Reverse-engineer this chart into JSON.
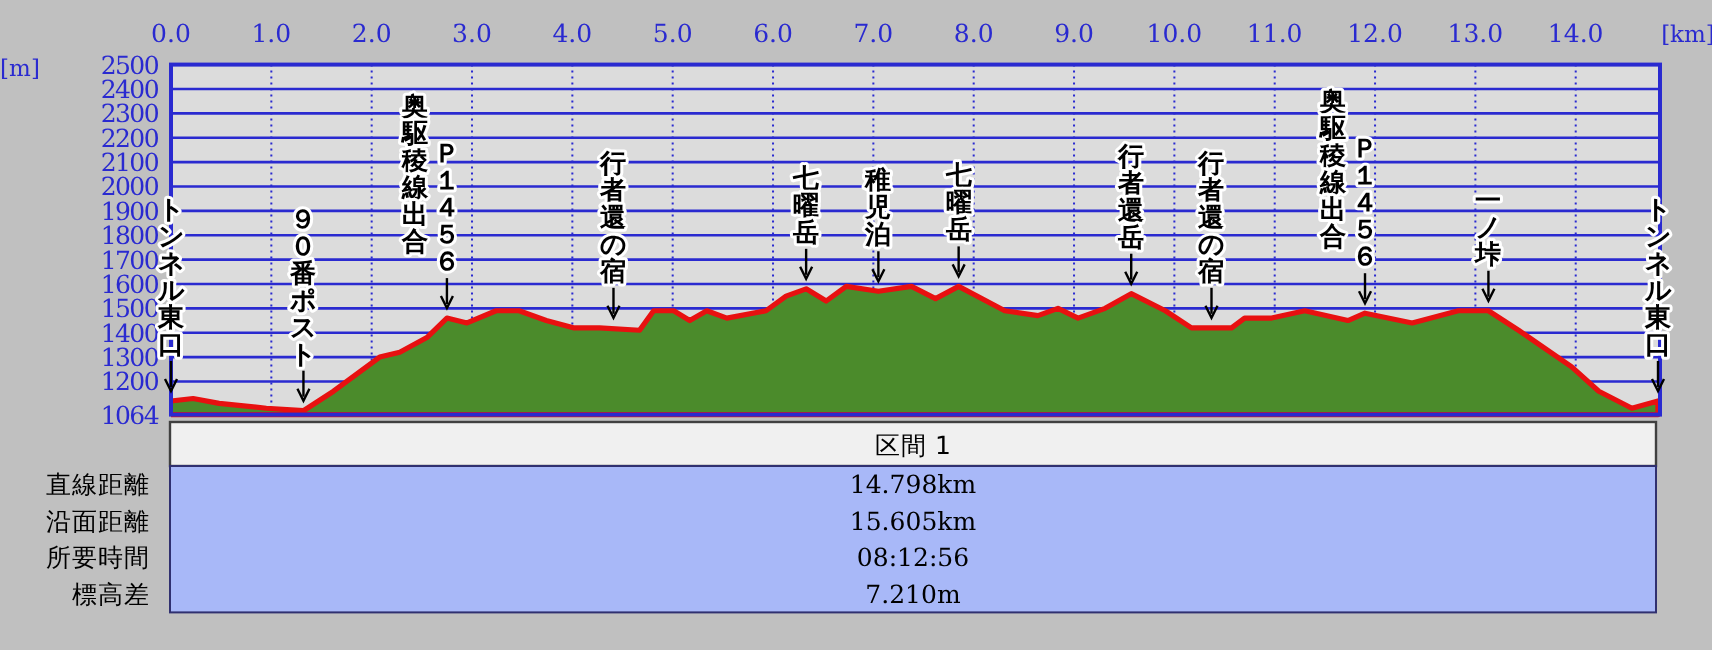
{
  "chart_data": [
    {
      "type": "area",
      "xlabel": "[km]",
      "ylabel": "[m]",
      "x": [
        0,
        0.22,
        0.48,
        0.95,
        1.32,
        1.62,
        2.08,
        2.28,
        2.55,
        2.75,
        2.95,
        3.24,
        3.47,
        3.74,
        4.01,
        4.27,
        4.67,
        4.81,
        5.01,
        5.17,
        5.34,
        5.54,
        5.93,
        6.13,
        6.33,
        6.53,
        6.73,
        7.05,
        7.38,
        7.62,
        7.85,
        8.31,
        8.64,
        8.84,
        9.04,
        9.31,
        9.57,
        9.91,
        10.17,
        10.57,
        10.7,
        10.97,
        11.3,
        11.73,
        11.9,
        12.37,
        12.83,
        13.13,
        13.43,
        13.96,
        14.23,
        14.56,
        14.82
      ],
      "series": [
        {
          "color": "#4b8b2b",
          "values": [
            1120,
            1130,
            1110,
            1090,
            1080,
            1160,
            1300,
            1320,
            1380,
            1460,
            1440,
            1490,
            1490,
            1450,
            1420,
            1420,
            1410,
            1490,
            1490,
            1450,
            1490,
            1460,
            1490,
            1550,
            1580,
            1530,
            1590,
            1570,
            1590,
            1540,
            1590,
            1490,
            1470,
            1500,
            1460,
            1500,
            1560,
            1490,
            1420,
            1420,
            1460,
            1460,
            1490,
            1450,
            1480,
            1440,
            1490,
            1490,
            1410,
            1260,
            1160,
            1090,
            1120
          ]
        }
      ],
      "xlim": [
        0,
        14.84
      ],
      "ylim": [
        1064,
        2500
      ],
      "xticks": [
        {
          "value": 0,
          "label": "0.0"
        },
        {
          "value": 1,
          "label": "1.0"
        },
        {
          "value": 2,
          "label": "2.0"
        },
        {
          "value": 3,
          "label": "3.0"
        },
        {
          "value": 4,
          "label": "4.0"
        },
        {
          "value": 5,
          "label": "5.0"
        },
        {
          "value": 6,
          "label": "6.0"
        },
        {
          "value": 7,
          "label": "7.0"
        },
        {
          "value": 8,
          "label": "8.0"
        },
        {
          "value": 9,
          "label": "9.0"
        },
        {
          "value": 10,
          "label": "10.0"
        },
        {
          "value": 11,
          "label": "11.0"
        },
        {
          "value": 12,
          "label": "12.0"
        },
        {
          "value": 13,
          "label": "13.0"
        },
        {
          "value": 14,
          "label": "14.0"
        }
      ],
      "yticks": [
        1064,
        1200,
        1300,
        1400,
        1500,
        1600,
        1700,
        1800,
        1900,
        2000,
        2100,
        2200,
        2300,
        2400,
        2500
      ],
      "grid": true,
      "annotations": [
        {
          "text": "トンネル東口",
          "x": 0,
          "y": 1120
        },
        {
          "text": "９０番ポスト",
          "x": 1.32,
          "y": 1080
        },
        {
          "text": "奥駆稜線出合",
          "x": 2.75,
          "y": 1460
        },
        {
          "text": "Ｐ１４５６",
          "x": 2.75,
          "y": 1460
        },
        {
          "text": "行者還の宿",
          "x": 4.41,
          "y": 1420
        },
        {
          "text": "七曜岳",
          "x": 6.33,
          "y": 1580
        },
        {
          "text": "稚児泊",
          "x": 7.05,
          "y": 1570
        },
        {
          "text": "七曜岳",
          "x": 7.85,
          "y": 1590
        },
        {
          "text": "行者還岳",
          "x": 9.57,
          "y": 1560
        },
        {
          "text": "行者還の宿",
          "x": 10.37,
          "y": 1420
        },
        {
          "text": "奥駆稜線出合",
          "x": 11.9,
          "y": 1480
        },
        {
          "text": "Ｐ１４５６",
          "x": 11.9,
          "y": 1480
        },
        {
          "text": "一ノ垰",
          "x": 13.13,
          "y": 1490
        },
        {
          "text": "トンネル東口",
          "x": 14.82,
          "y": 1120
        }
      ]
    },
    {
      "type": "other",
      "title": "区間 1",
      "annotations": [
        "直線距離",
        "14.798km",
        "沿面距離",
        "15.605km",
        "所要時間",
        "08:12:56",
        "標高差",
        "7.210m"
      ]
    }
  ]
}
